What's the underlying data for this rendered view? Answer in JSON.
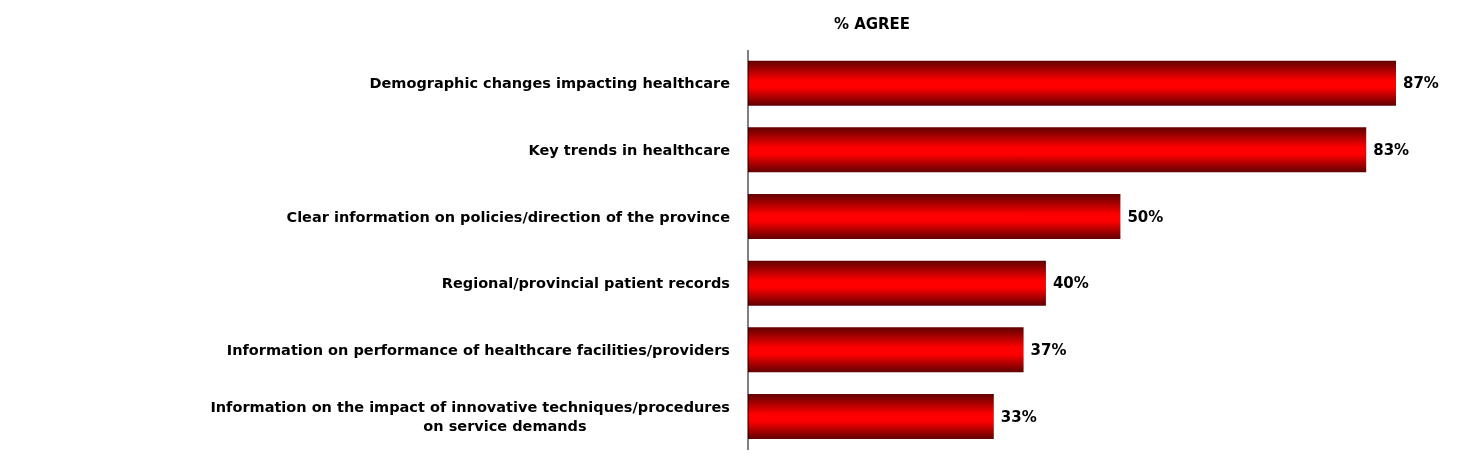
{
  "chart_data": {
    "type": "bar",
    "orientation": "horizontal",
    "title": "% AGREE",
    "categories": [
      "Demographic changes impacting healthcare",
      "Key trends in healthcare",
      "Clear information on policies/direction of the province",
      "Regional/provincial patient records",
      "Information on performance of healthcare facilities/providers",
      "Information on the impact of innovative techniques/procedures on service demands"
    ],
    "values": [
      87,
      83,
      50,
      40,
      37,
      33
    ],
    "value_labels": [
      "87%",
      "83%",
      "50%",
      "40%",
      "37%",
      "33%"
    ],
    "color": "#ff0000",
    "tick_labels": false,
    "grid": false,
    "legend": false
  }
}
